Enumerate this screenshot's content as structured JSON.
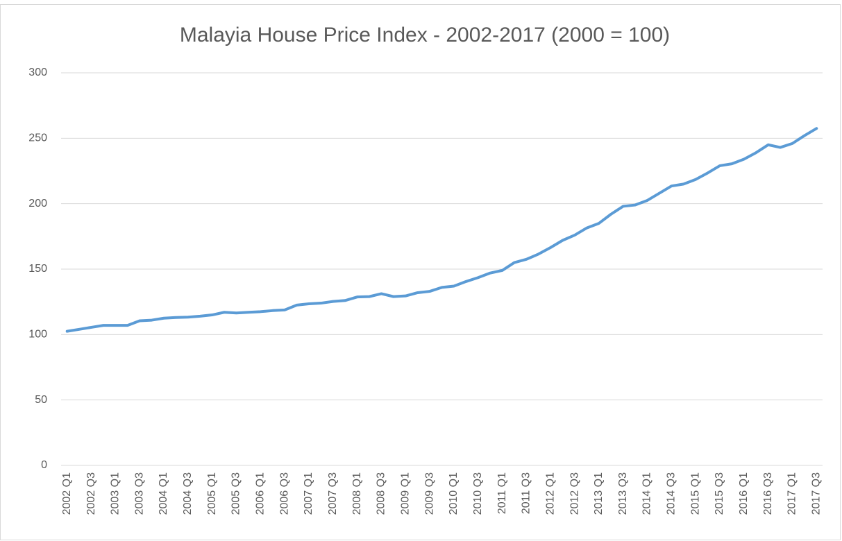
{
  "chart_data": {
    "type": "line",
    "title": "Malayia House Price Index - 2002-2017 (2000 = 100)",
    "categories": [
      "2002 Q1",
      null,
      "2002 Q3",
      null,
      "2003 Q1",
      null,
      "2003 Q3",
      null,
      "2004 Q1",
      null,
      "2004 Q3",
      null,
      "2005 Q1",
      null,
      "2005 Q3",
      null,
      "2006 Q1",
      null,
      "2006 Q3",
      null,
      "2007 Q1",
      null,
      "2007 Q3",
      null,
      "2008 Q1",
      null,
      "2008 Q3",
      null,
      "2009 Q1",
      null,
      "2009 Q3",
      null,
      "2010 Q1",
      null,
      "2010 Q3",
      null,
      "2011 Q1",
      null,
      "2011 Q3",
      null,
      "2012 Q1",
      null,
      "2012 Q3",
      null,
      "2013 Q1",
      null,
      "2013 Q3",
      null,
      "2014 Q1",
      null,
      "2014 Q3",
      null,
      "2015 Q1",
      null,
      "2015 Q3",
      null,
      "2016 Q1",
      null,
      "2016 Q3",
      null,
      "2017 Q1",
      null,
      "2017 Q3"
    ],
    "values": [
      102.5,
      104,
      105.5,
      107,
      107,
      107,
      110.5,
      111,
      112.5,
      113,
      113.3,
      114,
      115,
      117,
      116.5,
      117,
      117.5,
      118.3,
      118.8,
      122.5,
      123.5,
      124,
      125.3,
      126,
      128.7,
      129,
      131.2,
      129,
      129.5,
      132,
      133,
      136,
      137,
      140.5,
      143.5,
      147,
      149,
      155,
      157.5,
      161.5,
      166.5,
      172,
      176,
      181.5,
      185,
      192,
      198,
      199,
      202.5,
      208,
      213.5,
      215,
      218.5,
      223.5,
      229,
      230.5,
      234,
      239,
      245,
      243,
      246,
      252,
      257.5
    ],
    "color": "#5b9bd5",
    "ylim": [
      0,
      300
    ],
    "yticks": [
      0,
      50,
      100,
      150,
      200,
      250,
      300
    ],
    "grid": true
  }
}
